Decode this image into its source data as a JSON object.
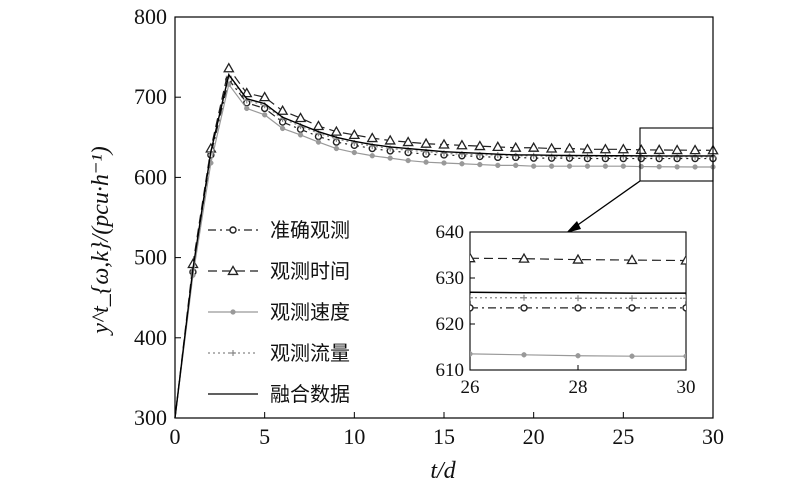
{
  "chart_data": {
    "type": "line",
    "main": {
      "xlabel": "t/d",
      "ylabel": "y^t_{ω,k}/(pcu·h⁻¹)",
      "xlim": [
        0,
        30
      ],
      "ylim": [
        300,
        800
      ],
      "xticks": [
        0,
        5,
        10,
        15,
        20,
        25,
        30
      ],
      "yticks": [
        300,
        400,
        500,
        600,
        700,
        800
      ],
      "grid": false,
      "legend_position": "lower-left",
      "series": [
        {
          "name": "准确观测",
          "color": "#222222",
          "linestyle": "dashdot",
          "marker": "circle-open",
          "x": [
            0,
            1,
            2,
            3,
            4,
            5,
            6,
            7,
            8,
            9,
            10,
            11,
            12,
            13,
            14,
            15,
            16,
            17,
            18,
            19,
            20,
            21,
            22,
            23,
            24,
            25,
            26,
            27,
            28,
            29,
            30
          ],
          "y": [
            300,
            482,
            628,
            722,
            693,
            686,
            669,
            660,
            651,
            644,
            640,
            636,
            633,
            631,
            629,
            628,
            627,
            626,
            625,
            625,
            624,
            624,
            624,
            623.5,
            623.5,
            623.5,
            623.5,
            623.5,
            623.5,
            623.5,
            623.5
          ]
        },
        {
          "name": "观测时间",
          "color": "#222222",
          "linestyle": "dashed",
          "marker": "triangle-open",
          "x": [
            0,
            1,
            2,
            3,
            4,
            5,
            6,
            7,
            8,
            9,
            10,
            11,
            12,
            13,
            14,
            15,
            16,
            17,
            18,
            19,
            20,
            21,
            22,
            23,
            24,
            25,
            26,
            27,
            28,
            29,
            30
          ],
          "y": [
            300,
            492,
            636,
            736,
            705,
            700,
            683,
            674,
            664,
            657,
            653,
            649,
            646,
            644,
            642,
            641,
            640,
            639,
            638,
            637,
            637,
            636,
            636,
            635,
            635,
            635,
            634.3,
            634.2,
            634,
            633.9,
            633.8
          ]
        },
        {
          "name": "观测速度",
          "color": "#999999",
          "linestyle": "solid",
          "marker": "dot",
          "x": [
            0,
            1,
            2,
            3,
            4,
            5,
            6,
            7,
            8,
            9,
            10,
            11,
            12,
            13,
            14,
            15,
            16,
            17,
            18,
            19,
            20,
            21,
            22,
            23,
            24,
            25,
            26,
            27,
            28,
            29,
            30
          ],
          "y": [
            300,
            478,
            618,
            716,
            686,
            678,
            661,
            653,
            644,
            636,
            631,
            627,
            624,
            621,
            619,
            618,
            617,
            616,
            615,
            615,
            614,
            614,
            614,
            614,
            614,
            614,
            613.5,
            613.3,
            613.1,
            613,
            613
          ]
        },
        {
          "name": "观测流量",
          "color": "#888888",
          "linestyle": "dotted",
          "marker": "plus",
          "x": [
            0,
            1,
            2,
            3,
            4,
            5,
            6,
            7,
            8,
            9,
            10,
            11,
            12,
            13,
            14,
            15,
            16,
            17,
            18,
            19,
            20,
            21,
            22,
            23,
            24,
            25,
            26,
            27,
            28,
            29,
            30
          ],
          "y": [
            300,
            485,
            631,
            726,
            696,
            690,
            673,
            664,
            655,
            648,
            643,
            639,
            636,
            634,
            632,
            630,
            629,
            628,
            628,
            627,
            627,
            626,
            626,
            626,
            626,
            626,
            625.7,
            625.7,
            625.6,
            625.6,
            625.6
          ]
        },
        {
          "name": "融合数据",
          "color": "#000000",
          "linestyle": "solid",
          "marker": "none",
          "x": [
            0,
            1,
            2,
            3,
            4,
            5,
            6,
            7,
            8,
            9,
            10,
            11,
            12,
            13,
            14,
            15,
            16,
            17,
            18,
            19,
            20,
            21,
            22,
            23,
            24,
            25,
            26,
            27,
            28,
            29,
            30
          ],
          "y": [
            300,
            486,
            632,
            728,
            698,
            692,
            675,
            666,
            657,
            650,
            645,
            641,
            638,
            636,
            634,
            632,
            631,
            630,
            629,
            628,
            628,
            627.5,
            627.3,
            627.2,
            627,
            627,
            626.9,
            626.8,
            626.8,
            626.7,
            626.7
          ]
        }
      ]
    },
    "inset": {
      "xlim": [
        26,
        30
      ],
      "ylim": [
        610,
        640
      ],
      "xticks": [
        26,
        28,
        30
      ],
      "yticks": [
        610,
        620,
        630,
        640
      ]
    }
  }
}
